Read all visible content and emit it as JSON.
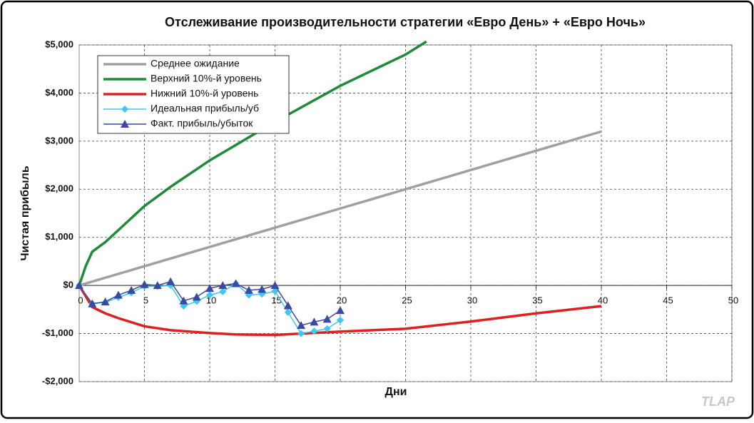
{
  "chart_data": {
    "type": "line",
    "title": "Отслеживание производительности стратегии «Евро День» + «Евро Ночь»",
    "x_label": "Дни",
    "y_label": "Чистая прибыль",
    "watermark": "TLAP",
    "xlim": [
      0,
      50
    ],
    "xticks": [
      0,
      5,
      10,
      15,
      20,
      25,
      30,
      35,
      40,
      45,
      50
    ],
    "ylim": [
      -2000,
      5000
    ],
    "yticks": [
      {
        "value": -2000,
        "label": "-$2,000"
      },
      {
        "value": -1000,
        "label": "-$1,000"
      },
      {
        "value": 0,
        "label": "$0"
      },
      {
        "value": 1000,
        "label": "$1,000"
      },
      {
        "value": 2000,
        "label": "$2,000"
      },
      {
        "value": 3000,
        "label": "$3,000"
      },
      {
        "value": 4000,
        "label": "$4,000"
      },
      {
        "value": 5000,
        "label": "$5,000"
      }
    ],
    "grid": true,
    "legend": "upper left",
    "series": [
      {
        "name": "Среднее ожидание",
        "color": "#a0a0a0",
        "marker": "none",
        "x": [
          0,
          5,
          10,
          15,
          20,
          25,
          30,
          35,
          40
        ],
        "values": [
          0,
          400,
          800,
          1200,
          1600,
          2000,
          2400,
          2800,
          3200
        ]
      },
      {
        "name": "Верхний 10%-й уровень",
        "color": "#1e8a3a",
        "marker": "none",
        "x": [
          0,
          0.5,
          1,
          2,
          3,
          5,
          7,
          10,
          15,
          20,
          25,
          26.6
        ],
        "values": [
          0,
          400,
          700,
          900,
          1150,
          1650,
          2050,
          2600,
          3400,
          4150,
          4800,
          5070
        ]
      },
      {
        "name": "Нижний 10%-й уровень",
        "color": "#e02020",
        "marker": "none",
        "x": [
          0,
          1,
          2,
          3,
          5,
          7,
          10,
          12,
          15,
          17,
          20,
          25,
          30,
          35,
          40
        ],
        "values": [
          0,
          -450,
          -580,
          -680,
          -850,
          -930,
          -990,
          -1020,
          -1030,
          -1000,
          -960,
          -900,
          -750,
          -580,
          -430
        ]
      },
      {
        "name": "Идеальная прибыль/уб",
        "color": "#3cc8f0",
        "marker": "diamond",
        "x": [
          0,
          1,
          2,
          3,
          4,
          5,
          6,
          7,
          8,
          9,
          10,
          11,
          12,
          13,
          14,
          15,
          16,
          17,
          18,
          19,
          20
        ],
        "values": [
          0,
          -380,
          -350,
          -250,
          -150,
          -20,
          -20,
          0,
          -430,
          -330,
          -200,
          -130,
          40,
          -200,
          -180,
          -120,
          -560,
          -1000,
          -950,
          -900,
          -720
        ]
      },
      {
        "name": "Факт. прибыль/убыток",
        "color": "#3a4aa0",
        "marker": "triangle",
        "x": [
          0,
          1,
          2,
          3,
          4,
          5,
          6,
          7,
          8,
          9,
          10,
          11,
          12,
          13,
          14,
          15,
          16,
          17,
          18,
          19,
          20
        ],
        "values": [
          0,
          -380,
          -340,
          -200,
          -100,
          20,
          0,
          80,
          -320,
          -240,
          -60,
          0,
          40,
          -100,
          -80,
          0,
          -420,
          -830,
          -760,
          -700,
          -520
        ]
      }
    ]
  }
}
